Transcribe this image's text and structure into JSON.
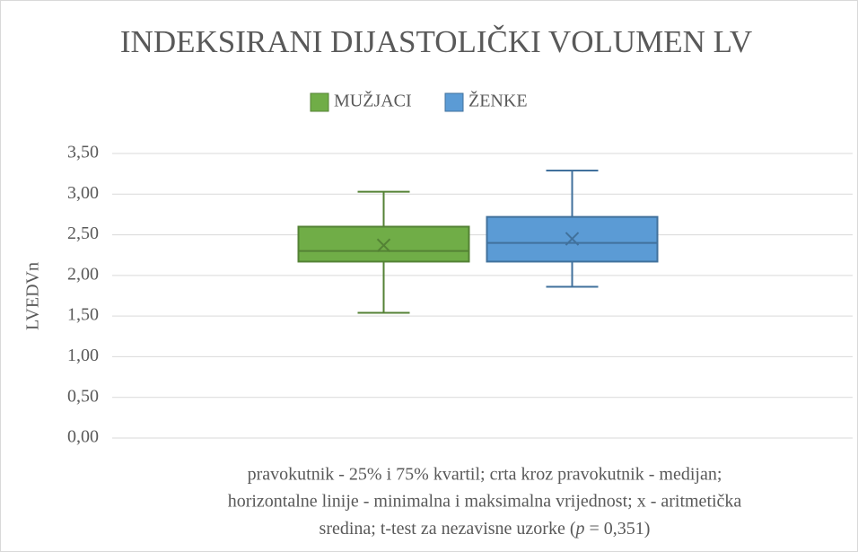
{
  "chart_data": {
    "type": "box",
    "title": "INDEKSIRANI DIJASTOLIČKI VOLUMEN LV",
    "ylabel": "LVEDVn",
    "legend": "top",
    "grid": true,
    "ylim": [
      0,
      3.5
    ],
    "yticks": [
      {
        "value": 0,
        "label": "0,00"
      },
      {
        "value": 0.5,
        "label": "0,50"
      },
      {
        "value": 1,
        "label": "1,00"
      },
      {
        "value": 1.5,
        "label": "1,50"
      },
      {
        "value": 2,
        "label": "2,00"
      },
      {
        "value": 2.5,
        "label": "2,50"
      },
      {
        "value": 3,
        "label": "3,00"
      },
      {
        "value": 3.5,
        "label": "3,50"
      }
    ],
    "series": [
      {
        "name": "MUŽJACI",
        "color": "#70ad47",
        "stroke": "#548235",
        "min": 1.54,
        "q1": 2.17,
        "median": 2.3,
        "q3": 2.6,
        "max": 3.03,
        "mean": 2.37
      },
      {
        "name": "ŽENKE",
        "color": "#5b9bd5",
        "stroke": "#41719c",
        "min": 1.86,
        "q1": 2.17,
        "median": 2.4,
        "q3": 2.72,
        "max": 3.29,
        "mean": 2.45
      }
    ],
    "note": [
      "pravokutnik - 25% i 75% kvartil; crta kroz pravokutnik - medijan;",
      "horizontalne linije - minimalna i maksimalna vrijednost; x - aritmetička",
      [
        "sredina; t-test za nezavisne uzorke (",
        "p",
        " = 0,351)"
      ]
    ]
  }
}
